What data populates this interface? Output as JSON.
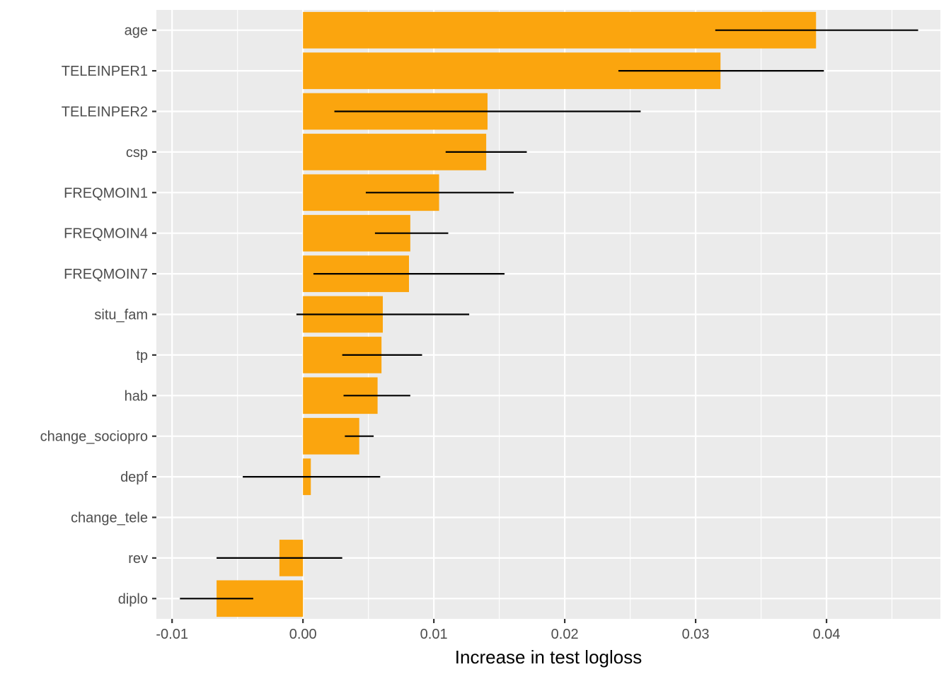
{
  "chart_data": {
    "type": "bar",
    "orientation": "horizontal",
    "title": "",
    "xlabel": "Increase in test logloss",
    "ylabel": "",
    "xlim": [
      -0.0112,
      0.0487
    ],
    "x_ticks": [
      -0.01,
      0.0,
      0.01,
      0.02,
      0.03,
      0.04
    ],
    "x_tick_labels": [
      "-0.01",
      "0.00",
      "0.01",
      "0.02",
      "0.03",
      "0.04"
    ],
    "grid": true,
    "legend": "none",
    "categories": [
      "age",
      "TELEINPER1",
      "TELEINPER2",
      "csp",
      "FREQMOIN1",
      "FREQMOIN4",
      "FREQMOIN7",
      "situ_fam",
      "tp",
      "hab",
      "change_sociopro",
      "depf",
      "change_tele",
      "rev",
      "diplo"
    ],
    "values": [
      0.0392,
      0.0319,
      0.0141,
      0.014,
      0.0104,
      0.0082,
      0.0081,
      0.0061,
      0.006,
      0.0057,
      0.0043,
      0.0006,
      0.0,
      -0.0018,
      -0.0066
    ],
    "error_low": [
      0.0315,
      0.0241,
      0.0024,
      0.0109,
      0.0048,
      0.0055,
      0.0008,
      -0.0005,
      0.003,
      0.0031,
      0.0032,
      -0.0046,
      null,
      -0.0066,
      -0.0094
    ],
    "error_high": [
      0.047,
      0.0398,
      0.0258,
      0.0171,
      0.0161,
      0.0111,
      0.0154,
      0.0127,
      0.0091,
      0.0082,
      0.0054,
      0.0059,
      null,
      0.003,
      -0.0038
    ],
    "colors": {
      "bar": "#FBA50E",
      "errorbar": "#000000",
      "panel_background": "#EBEBEB",
      "grid": "#FFFFFF",
      "tick_text": "#4D4D4D",
      "title_text": "#000000"
    }
  }
}
